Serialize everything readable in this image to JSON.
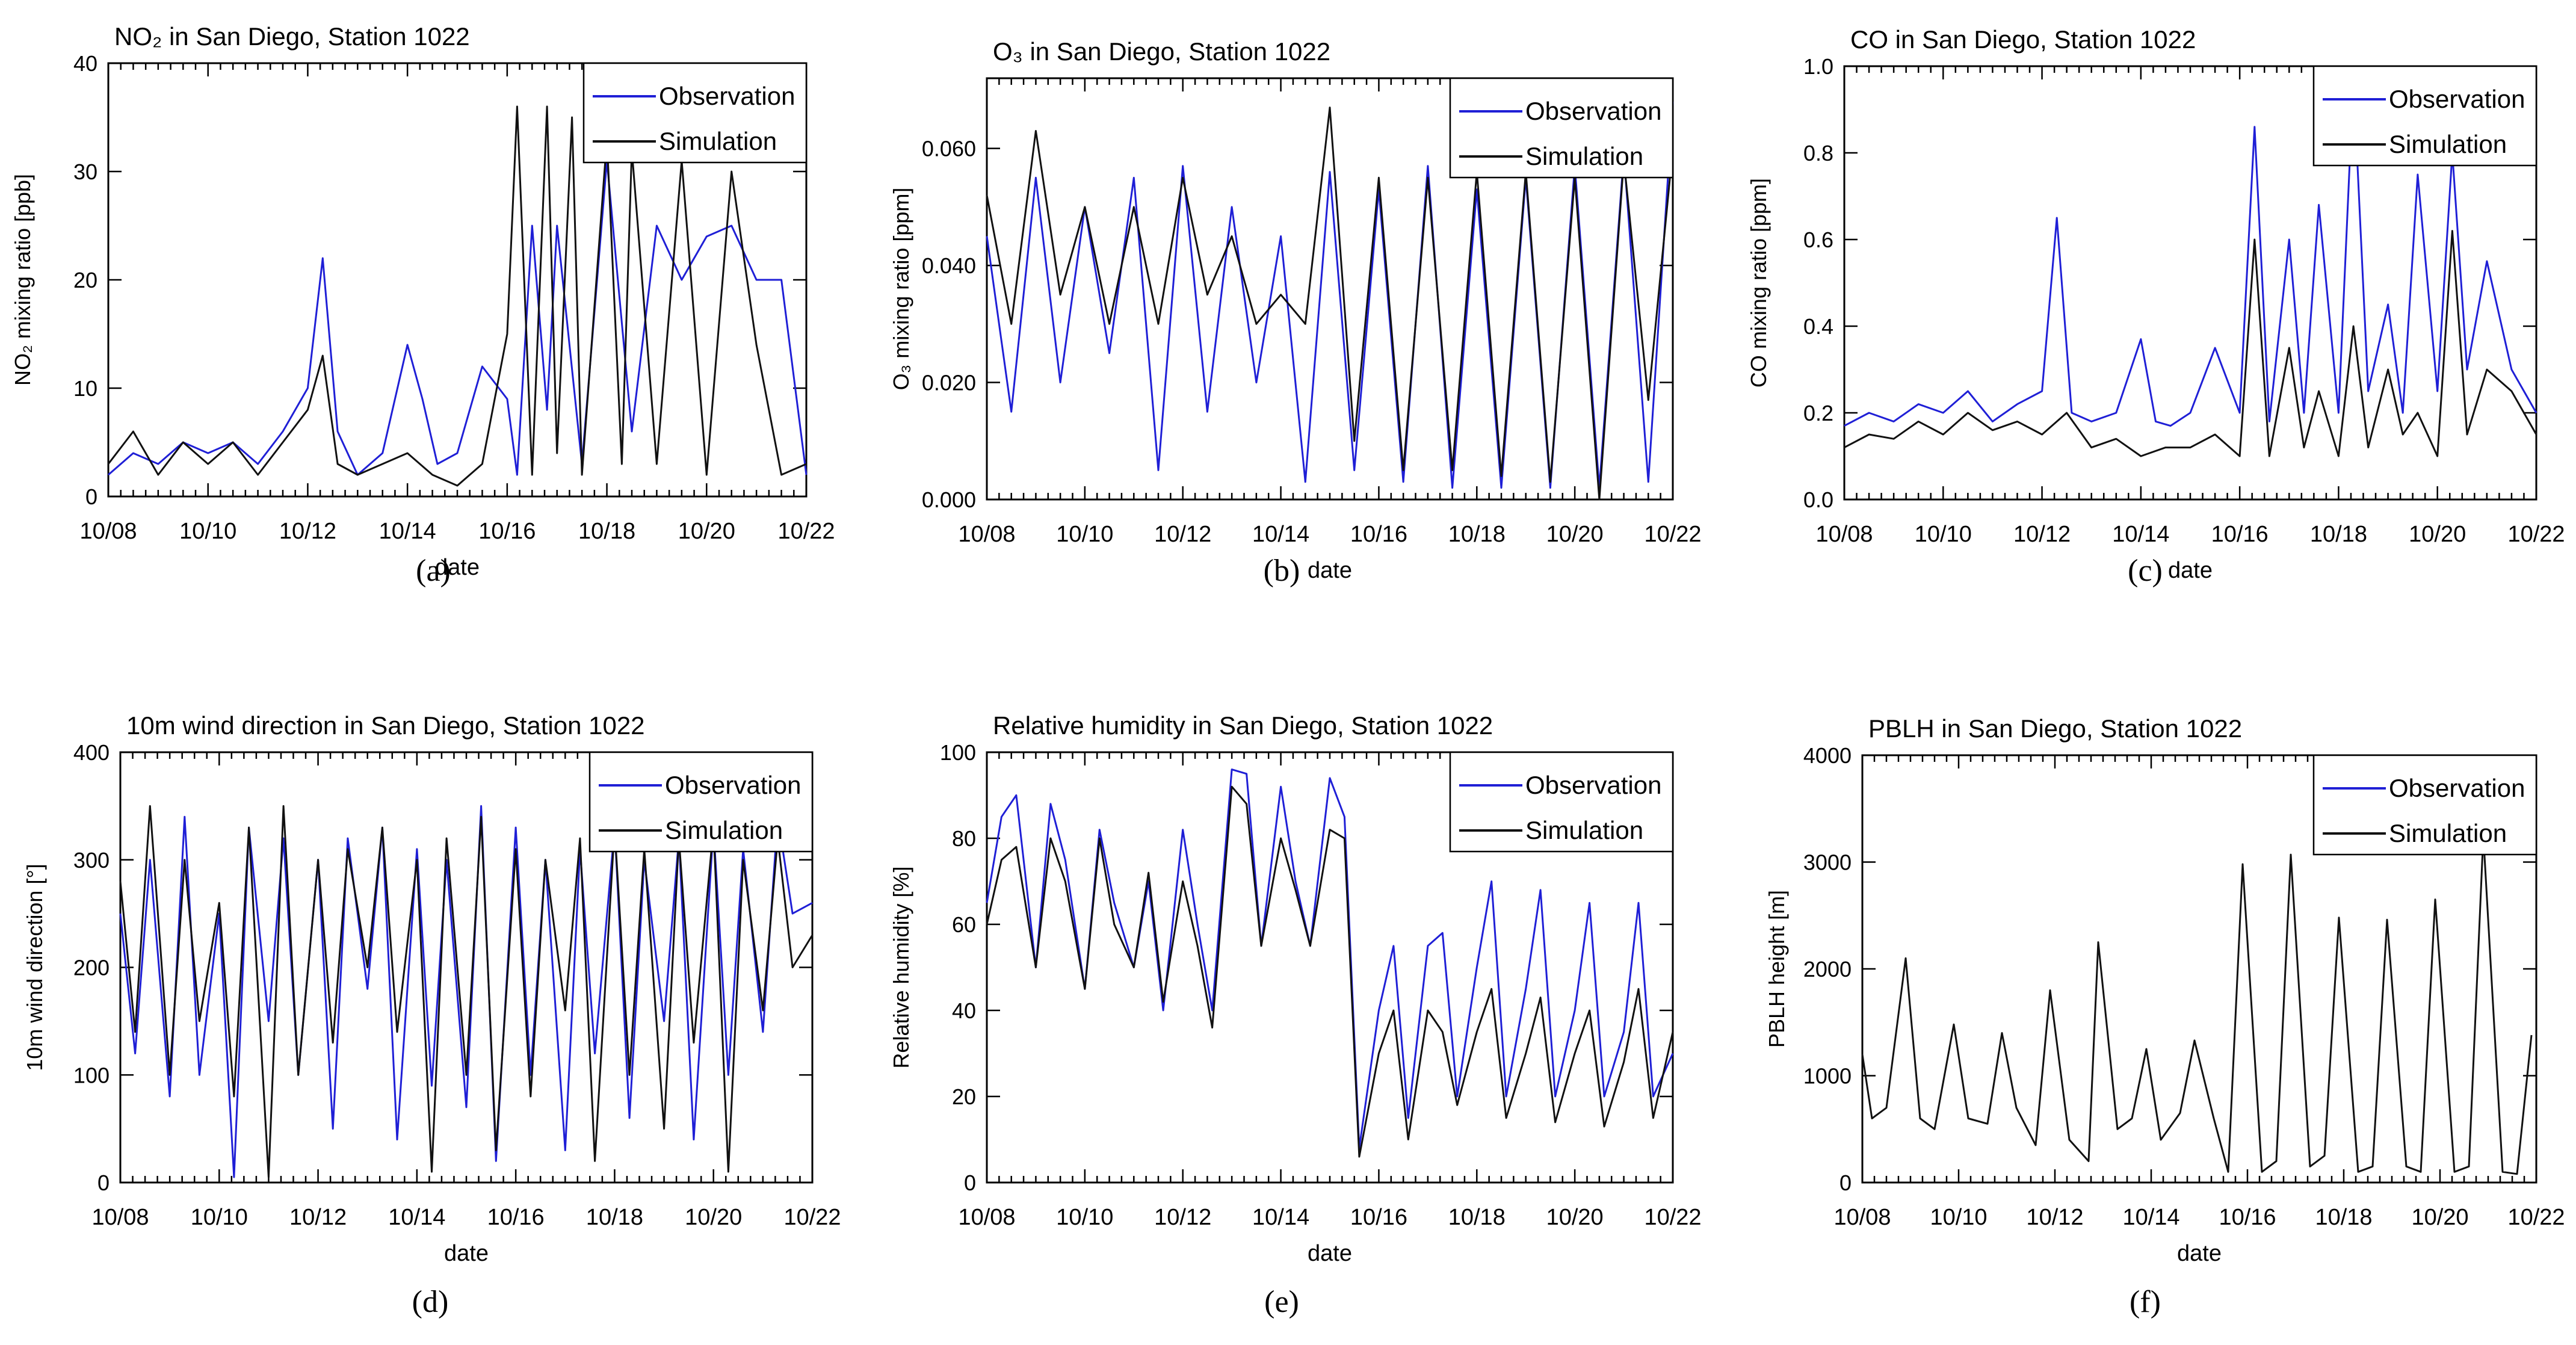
{
  "figure": {
    "x_ticks": [
      "10/08",
      "10/10",
      "10/12",
      "10/14",
      "10/16",
      "10/18",
      "10/20",
      "10/22"
    ],
    "x_label": "date",
    "legend": {
      "observation": "Observation",
      "simulation": "Simulation"
    },
    "colors": {
      "observation": "#1f1fd6",
      "simulation": "#111111"
    }
  },
  "chart_data": [
    {
      "type": "line",
      "panel": "(a)",
      "title": "NO₂ in San Diego, Station 1022",
      "ylabel": "NO₂ mixing ratio [ppb]",
      "xlabel": "date",
      "ylim": [
        0,
        40
      ],
      "yticks": [
        0,
        10,
        20,
        30,
        40
      ],
      "ytick_labels": [
        "0",
        "10",
        "20",
        "30",
        "40"
      ],
      "series": [
        {
          "name": "Observation",
          "t": [
            0,
            0.5,
            1,
            1.5,
            2,
            2.5,
            3,
            3.5,
            4,
            4.3,
            4.6,
            5,
            5.5,
            6,
            6.3,
            6.6,
            7,
            7.5,
            8,
            8.2,
            8.5,
            8.8,
            9,
            9.5,
            10,
            10.5,
            11,
            11.5,
            12,
            12.5,
            13,
            13.5,
            14
          ],
          "values": [
            2,
            4,
            3,
            5,
            4,
            5,
            3,
            6,
            10,
            22,
            6,
            2,
            4,
            14,
            9,
            3,
            4,
            12,
            9,
            2,
            25,
            8,
            25,
            3,
            31,
            6,
            25,
            20,
            24,
            25,
            20,
            20,
            2
          ]
        },
        {
          "name": "Simulation",
          "t": [
            0,
            0.5,
            1,
            1.5,
            2,
            2.5,
            3,
            3.5,
            4,
            4.3,
            4.6,
            5,
            5.5,
            6,
            6.5,
            7,
            7.5,
            8,
            8.2,
            8.5,
            8.8,
            9,
            9.3,
            9.5,
            10,
            10.3,
            10.5,
            11,
            11.5,
            12,
            12.5,
            13,
            13.5,
            14
          ],
          "values": [
            3,
            6,
            2,
            5,
            3,
            5,
            2,
            5,
            8,
            13,
            3,
            2,
            3,
            4,
            2,
            1,
            3,
            15,
            36,
            2,
            36,
            4,
            35,
            2,
            33,
            3,
            32,
            3,
            31,
            2,
            30,
            14,
            2,
            3
          ]
        }
      ]
    },
    {
      "type": "line",
      "panel": "(b)",
      "title": "O₃ in San Diego, Station 1022",
      "ylabel": "O₃ mixing ratio [ppm]",
      "xlabel": "date",
      "ylim": [
        0,
        0.072
      ],
      "yticks": [
        0,
        0.02,
        0.04,
        0.06
      ],
      "ytick_labels": [
        "0.000",
        "0.020",
        "0.040",
        "0.060"
      ],
      "series": [
        {
          "name": "Observation",
          "t": [
            0,
            0.5,
            1,
            1.5,
            2,
            2.5,
            3,
            3.5,
            4,
            4.5,
            5,
            5.5,
            6,
            6.5,
            7,
            7.5,
            8,
            8.5,
            9,
            9.5,
            10,
            10.5,
            11,
            11.5,
            12,
            12.5,
            13,
            13.5,
            14
          ],
          "values": [
            0.045,
            0.015,
            0.055,
            0.02,
            0.05,
            0.025,
            0.055,
            0.005,
            0.057,
            0.015,
            0.05,
            0.02,
            0.045,
            0.003,
            0.056,
            0.005,
            0.053,
            0.003,
            0.057,
            0.002,
            0.053,
            0.002,
            0.055,
            0.002,
            0.057,
            0.002,
            0.059,
            0.003,
            0.068
          ]
        },
        {
          "name": "Simulation",
          "t": [
            0,
            0.5,
            1,
            1.5,
            2,
            2.5,
            3,
            3.5,
            4,
            4.5,
            5,
            5.5,
            6,
            6.5,
            7,
            7.5,
            8,
            8.5,
            9,
            9.5,
            10,
            10.5,
            11,
            11.5,
            12,
            12.5,
            13,
            13.5,
            14
          ],
          "values": [
            0.052,
            0.03,
            0.063,
            0.035,
            0.05,
            0.03,
            0.05,
            0.03,
            0.055,
            0.035,
            0.045,
            0.03,
            0.035,
            0.03,
            0.067,
            0.01,
            0.055,
            0.005,
            0.055,
            0.005,
            0.056,
            0.004,
            0.056,
            0.003,
            0.055,
            0.0,
            0.058,
            0.017,
            0.06
          ]
        }
      ]
    },
    {
      "type": "line",
      "panel": "(c)",
      "title": "CO in San Diego, Station 1022",
      "ylabel": "CO mixing ratio [ppm]",
      "xlabel": "date",
      "ylim": [
        0,
        1.0
      ],
      "yticks": [
        0,
        0.2,
        0.4,
        0.6,
        0.8,
        1.0
      ],
      "ytick_labels": [
        "0.0",
        "0.2",
        "0.4",
        "0.6",
        "0.8",
        "1.0"
      ],
      "series": [
        {
          "name": "Observation",
          "t": [
            0,
            0.5,
            1,
            1.5,
            2,
            2.5,
            3,
            3.5,
            4,
            4.3,
            4.6,
            5,
            5.5,
            6,
            6.3,
            6.6,
            7,
            7.5,
            8,
            8.3,
            8.6,
            9,
            9.3,
            9.6,
            10,
            10.3,
            10.6,
            11,
            11.3,
            11.6,
            12,
            12.3,
            12.6,
            13,
            13.5,
            14
          ],
          "values": [
            0.17,
            0.2,
            0.18,
            0.22,
            0.2,
            0.25,
            0.18,
            0.22,
            0.25,
            0.65,
            0.2,
            0.18,
            0.2,
            0.37,
            0.18,
            0.17,
            0.2,
            0.35,
            0.2,
            0.86,
            0.18,
            0.6,
            0.2,
            0.68,
            0.2,
            0.97,
            0.25,
            0.45,
            0.2,
            0.75,
            0.25,
            0.8,
            0.3,
            0.55,
            0.3,
            0.2
          ]
        },
        {
          "name": "Simulation",
          "t": [
            0,
            0.5,
            1,
            1.5,
            2,
            2.5,
            3,
            3.5,
            4,
            4.5,
            5,
            5.5,
            6,
            6.5,
            7,
            7.5,
            8,
            8.3,
            8.6,
            9,
            9.3,
            9.6,
            10,
            10.3,
            10.6,
            11,
            11.3,
            11.6,
            12,
            12.3,
            12.6,
            13,
            13.5,
            14
          ],
          "values": [
            0.12,
            0.15,
            0.14,
            0.18,
            0.15,
            0.2,
            0.16,
            0.18,
            0.15,
            0.2,
            0.12,
            0.14,
            0.1,
            0.12,
            0.12,
            0.15,
            0.1,
            0.6,
            0.1,
            0.35,
            0.12,
            0.25,
            0.1,
            0.4,
            0.12,
            0.3,
            0.15,
            0.2,
            0.1,
            0.62,
            0.15,
            0.3,
            0.25,
            0.15
          ]
        }
      ]
    },
    {
      "type": "line",
      "panel": "(d)",
      "title": "10m wind direction in San Diego, Station 1022",
      "ylabel": "10m wind direction [°]",
      "xlabel": "date",
      "ylim": [
        0,
        400
      ],
      "yticks": [
        0,
        100,
        200,
        300,
        400
      ],
      "ytick_labels": [
        "0",
        "100",
        "200",
        "300",
        "400"
      ],
      "series": [
        {
          "name": "Observation",
          "t": [
            0,
            0.3,
            0.6,
            1,
            1.3,
            1.6,
            2,
            2.3,
            2.6,
            3,
            3.3,
            3.6,
            4,
            4.3,
            4.6,
            5,
            5.3,
            5.6,
            6,
            6.3,
            6.6,
            7,
            7.3,
            7.6,
            8,
            8.3,
            8.6,
            9,
            9.3,
            9.6,
            10,
            10.3,
            10.6,
            11,
            11.3,
            11.6,
            12,
            12.3,
            12.6,
            13,
            13.3,
            13.6,
            14
          ],
          "values": [
            250,
            120,
            300,
            80,
            340,
            100,
            250,
            5,
            330,
            150,
            320,
            100,
            300,
            50,
            320,
            180,
            330,
            40,
            310,
            90,
            300,
            70,
            350,
            20,
            330,
            100,
            300,
            30,
            310,
            120,
            330,
            60,
            300,
            150,
            320,
            40,
            330,
            100,
            310,
            140,
            340,
            250,
            260
          ]
        },
        {
          "name": "Simulation",
          "t": [
            0,
            0.3,
            0.6,
            1,
            1.3,
            1.6,
            2,
            2.3,
            2.6,
            3,
            3.3,
            3.6,
            4,
            4.3,
            4.6,
            5,
            5.3,
            5.6,
            6,
            6.3,
            6.6,
            7,
            7.3,
            7.6,
            8,
            8.3,
            8.6,
            9,
            9.3,
            9.6,
            10,
            10.3,
            10.6,
            11,
            11.3,
            11.6,
            12,
            12.3,
            12.6,
            13,
            13.3,
            13.6,
            14
          ],
          "values": [
            280,
            140,
            350,
            100,
            300,
            150,
            260,
            80,
            330,
            5,
            350,
            100,
            300,
            130,
            310,
            200,
            330,
            140,
            300,
            10,
            320,
            100,
            340,
            30,
            310,
            80,
            300,
            160,
            320,
            20,
            330,
            100,
            310,
            50,
            320,
            130,
            330,
            10,
            300,
            160,
            320,
            200,
            230
          ]
        }
      ]
    },
    {
      "type": "line",
      "panel": "(e)",
      "title": "Relative humidity in San Diego, Station 1022",
      "ylabel": "Relative humidity [%]",
      "xlabel": "date",
      "ylim": [
        0,
        100
      ],
      "yticks": [
        0,
        20,
        40,
        60,
        80,
        100
      ],
      "ytick_labels": [
        "0",
        "20",
        "40",
        "60",
        "80",
        "100"
      ],
      "series": [
        {
          "name": "Observation",
          "t": [
            0,
            0.3,
            0.6,
            1,
            1.3,
            1.6,
            2,
            2.3,
            2.6,
            3,
            3.3,
            3.6,
            4,
            4.3,
            4.6,
            5,
            5.3,
            5.6,
            6,
            6.3,
            6.6,
            7,
            7.3,
            7.6,
            8,
            8.3,
            8.6,
            9,
            9.3,
            9.6,
            10,
            10.3,
            10.6,
            11,
            11.3,
            11.6,
            12,
            12.3,
            12.6,
            13,
            13.3,
            13.6,
            14
          ],
          "values": [
            65,
            85,
            90,
            50,
            88,
            75,
            45,
            82,
            65,
            50,
            70,
            40,
            82,
            60,
            40,
            96,
            95,
            55,
            92,
            70,
            55,
            94,
            85,
            8,
            40,
            55,
            15,
            55,
            58,
            20,
            50,
            70,
            20,
            45,
            68,
            20,
            40,
            65,
            20,
            35,
            65,
            20,
            30
          ]
        },
        {
          "name": "Simulation",
          "t": [
            0,
            0.3,
            0.6,
            1,
            1.3,
            1.6,
            2,
            2.3,
            2.6,
            3,
            3.3,
            3.6,
            4,
            4.3,
            4.6,
            5,
            5.3,
            5.6,
            6,
            6.3,
            6.6,
            7,
            7.3,
            7.6,
            8,
            8.3,
            8.6,
            9,
            9.3,
            9.6,
            10,
            10.3,
            10.6,
            11,
            11.3,
            11.6,
            12,
            12.3,
            12.6,
            13,
            13.3,
            13.6,
            14
          ],
          "values": [
            60,
            75,
            78,
            50,
            80,
            70,
            45,
            80,
            60,
            50,
            72,
            42,
            70,
            55,
            36,
            92,
            88,
            55,
            80,
            68,
            55,
            82,
            80,
            6,
            30,
            40,
            10,
            40,
            35,
            18,
            35,
            45,
            15,
            30,
            43,
            14,
            30,
            40,
            13,
            28,
            45,
            15,
            35
          ]
        }
      ]
    },
    {
      "type": "line",
      "panel": "(f)",
      "title": "PBLH in San Diego, Station 1022",
      "ylabel": "PBLH height [m]",
      "xlabel": "date",
      "ylim": [
        0,
        4000
      ],
      "yticks": [
        0,
        1000,
        2000,
        3000,
        4000
      ],
      "ytick_labels": [
        "0",
        "1000",
        "2000",
        "3000",
        "4000"
      ],
      "series": [
        {
          "name": "Observation",
          "t": [],
          "values": []
        },
        {
          "name": "Simulation",
          "t": [
            0,
            0.2,
            0.5,
            0.9,
            1.2,
            1.5,
            1.9,
            2.2,
            2.6,
            2.9,
            3.2,
            3.6,
            3.9,
            4.3,
            4.7,
            4.9,
            5.3,
            5.6,
            5.9,
            6.2,
            6.6,
            6.9,
            7.3,
            7.6,
            7.9,
            8.3,
            8.6,
            8.9,
            9.3,
            9.6,
            9.9,
            10.3,
            10.6,
            10.9,
            11.3,
            11.6,
            11.9,
            12.3,
            12.6,
            12.9,
            13.3,
            13.6,
            13.9
          ],
          "values": [
            1200,
            600,
            700,
            2100,
            600,
            500,
            1480,
            600,
            550,
            1400,
            700,
            350,
            1800,
            400,
            200,
            2250,
            500,
            600,
            1250,
            400,
            650,
            1330,
            600,
            100,
            2980,
            100,
            200,
            3070,
            150,
            250,
            2480,
            100,
            150,
            2460,
            150,
            100,
            2650,
            100,
            150,
            3250,
            100,
            80,
            1380
          ]
        }
      ]
    }
  ]
}
